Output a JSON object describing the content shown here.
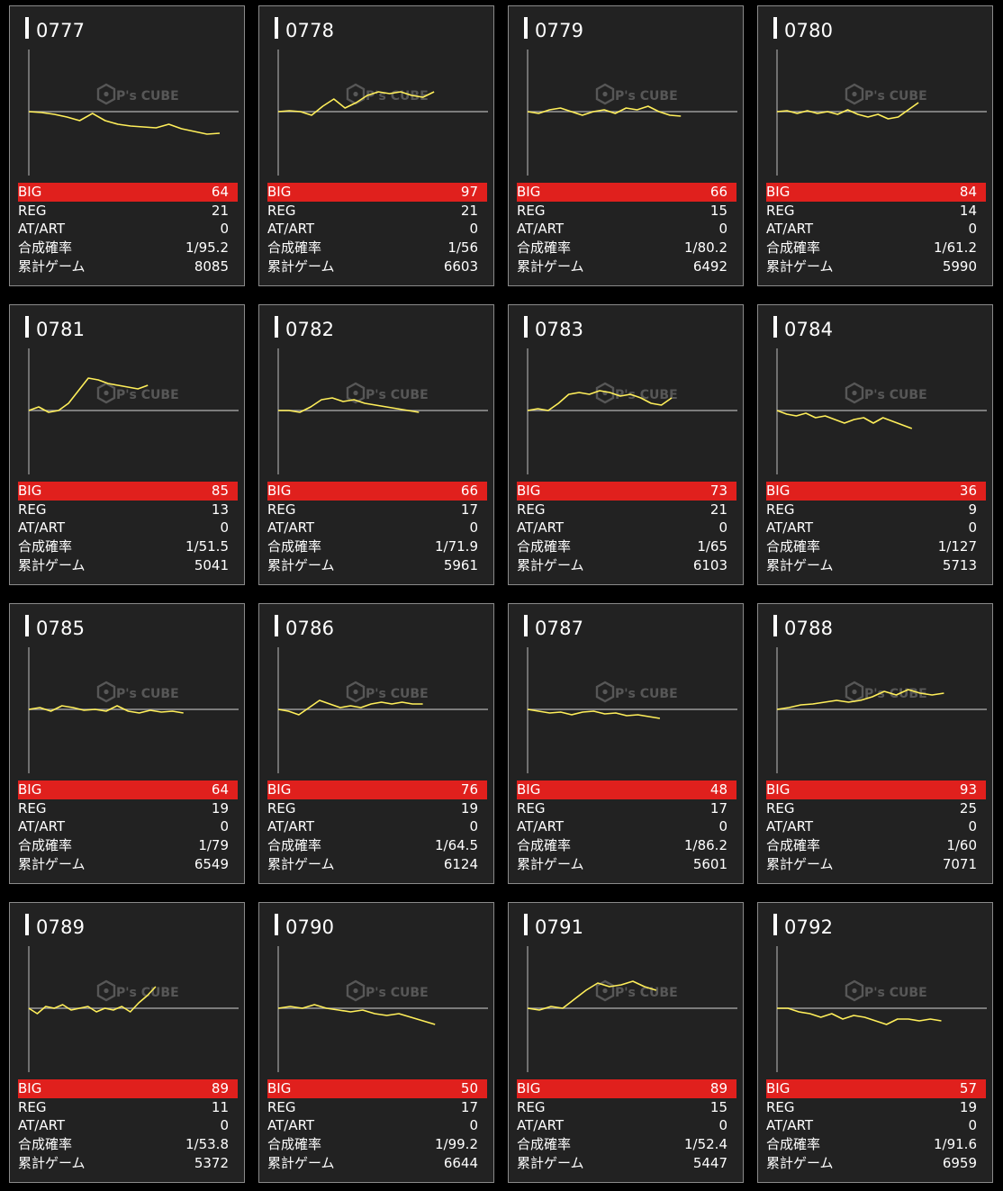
{
  "labels": {
    "big": "BIG",
    "reg": "REG",
    "at": "AT/ART",
    "prob": "合成確率",
    "games": "累計ゲーム"
  },
  "watermark": "P's CUBE",
  "colors": {
    "line": "#ffef5a",
    "big_bar": "#e0201d",
    "card_bg": "#222222",
    "zero_line": "#9a9a9a"
  },
  "machines": [
    {
      "id": "0777",
      "big": "64",
      "reg": "21",
      "at": "0",
      "prob": "1/95.2",
      "games": "8085",
      "trend": [
        0,
        -1,
        -3,
        -6,
        -10,
        -2,
        -10,
        -14,
        -16,
        -17,
        -18,
        -14,
        -19,
        -22,
        -25,
        -24
      ]
    },
    {
      "id": "0778",
      "big": "97",
      "reg": "21",
      "at": "0",
      "prob": "1/56",
      "games": "6603",
      "trend": [
        0,
        1,
        0,
        -4,
        6,
        14,
        4,
        10,
        18,
        22,
        20,
        22,
        18,
        16,
        22
      ]
    },
    {
      "id": "0779",
      "big": "66",
      "reg": "15",
      "at": "0",
      "prob": "1/80.2",
      "games": "6492",
      "trend": [
        0,
        -2,
        2,
        4,
        0,
        -4,
        0,
        2,
        -2,
        4,
        2,
        6,
        0,
        -4,
        -5
      ]
    },
    {
      "id": "0780",
      "big": "84",
      "reg": "14",
      "at": "0",
      "prob": "1/61.2",
      "games": "5990",
      "trend": [
        0,
        1,
        -2,
        1,
        -2,
        0,
        -3,
        2,
        -3,
        -6,
        -3,
        -8,
        -6,
        2,
        10
      ]
    },
    {
      "id": "0781",
      "big": "85",
      "reg": "13",
      "at": "0",
      "prob": "1/51.5",
      "games": "5041",
      "trend": [
        0,
        4,
        -2,
        0,
        8,
        22,
        36,
        34,
        30,
        28,
        26,
        24,
        28
      ]
    },
    {
      "id": "0782",
      "big": "66",
      "reg": "17",
      "at": "0",
      "prob": "1/71.9",
      "games": "5961",
      "trend": [
        0,
        0,
        -2,
        4,
        12,
        14,
        10,
        12,
        8,
        6,
        4,
        2,
        0,
        -2
      ]
    },
    {
      "id": "0783",
      "big": "73",
      "reg": "21",
      "at": "0",
      "prob": "1/65",
      "games": "6103",
      "trend": [
        0,
        2,
        0,
        8,
        18,
        20,
        18,
        22,
        20,
        16,
        18,
        14,
        8,
        6,
        14
      ]
    },
    {
      "id": "0784",
      "big": "36",
      "reg": "9",
      "at": "0",
      "prob": "1/127",
      "games": "5713",
      "trend": [
        0,
        -4,
        -6,
        -3,
        -8,
        -6,
        -10,
        -14,
        -10,
        -8,
        -14,
        -8,
        -12,
        -16,
        -20
      ]
    },
    {
      "id": "0785",
      "big": "64",
      "reg": "19",
      "at": "0",
      "prob": "1/79",
      "games": "6549",
      "trend": [
        0,
        2,
        -2,
        4,
        2,
        -1,
        0,
        -2,
        4,
        -2,
        -4,
        -1,
        -3,
        -2,
        -4
      ]
    },
    {
      "id": "0786",
      "big": "76",
      "reg": "19",
      "at": "0",
      "prob": "1/64.5",
      "games": "6124",
      "trend": [
        0,
        -2,
        -6,
        2,
        10,
        6,
        2,
        4,
        2,
        6,
        8,
        6,
        8,
        6,
        6
      ]
    },
    {
      "id": "0787",
      "big": "48",
      "reg": "17",
      "at": "0",
      "prob": "1/86.2",
      "games": "5601",
      "trend": [
        0,
        -2,
        -4,
        -3,
        -6,
        -3,
        -2,
        -5,
        -4,
        -7,
        -6,
        -8,
        -10
      ]
    },
    {
      "id": "0788",
      "big": "93",
      "reg": "25",
      "at": "0",
      "prob": "1/60",
      "games": "7071",
      "trend": [
        0,
        2,
        5,
        6,
        8,
        10,
        8,
        10,
        14,
        20,
        16,
        22,
        18,
        16,
        18
      ]
    },
    {
      "id": "0789",
      "big": "89",
      "reg": "11",
      "at": "0",
      "prob": "1/53.8",
      "games": "5372",
      "trend": [
        0,
        -6,
        2,
        0,
        4,
        -2,
        0,
        2,
        -4,
        0,
        -2,
        2,
        -4,
        6,
        14,
        24
      ]
    },
    {
      "id": "0790",
      "big": "50",
      "reg": "17",
      "at": "0",
      "prob": "1/99.2",
      "games": "6644",
      "trend": [
        0,
        2,
        0,
        4,
        0,
        -2,
        -4,
        -2,
        -6,
        -8,
        -6,
        -10,
        -14,
        -18
      ]
    },
    {
      "id": "0791",
      "big": "89",
      "reg": "15",
      "at": "0",
      "prob": "1/52.4",
      "games": "5447",
      "trend": [
        0,
        -2,
        2,
        0,
        10,
        20,
        28,
        24,
        26,
        30,
        24,
        20
      ]
    },
    {
      "id": "0792",
      "big": "57",
      "reg": "19",
      "at": "0",
      "prob": "1/91.6",
      "games": "6959",
      "trend": [
        0,
        0,
        -4,
        -6,
        -10,
        -6,
        -12,
        -8,
        -10,
        -14,
        -18,
        -12,
        -12,
        -14,
        -12,
        -14
      ]
    }
  ]
}
